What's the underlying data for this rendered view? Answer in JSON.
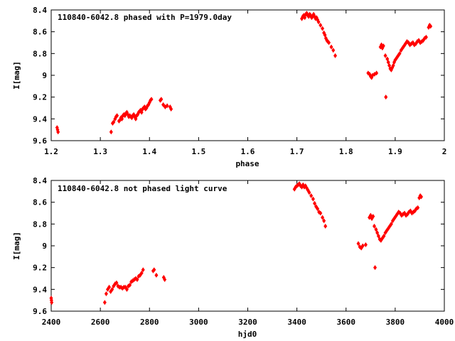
{
  "chart_data": [
    {
      "type": "scatter",
      "title": "110840-6042.8 phased with P=1979.0day",
      "xlabel": "phase",
      "ylabel": "I[mag]",
      "xlim": [
        1.2,
        2.0
      ],
      "ylim": [
        9.6,
        8.4
      ],
      "y_inverted": true,
      "grid": false,
      "xticks": [
        "1.2",
        "1.3",
        "1.4",
        "1.5",
        "1.6",
        "1.7",
        "1.8",
        "1.9",
        "2"
      ],
      "yticks": [
        "8.4",
        "8.6",
        "8.8",
        "9",
        "9.2",
        "9.4",
        "9.6"
      ],
      "series": [
        {
          "color": "#ff0000",
          "marker": "diamond",
          "points": [
            [
              1.212,
              9.48
            ],
            [
              1.213,
              9.5
            ],
            [
              1.214,
              9.52
            ],
            [
              1.322,
              9.52
            ],
            [
              1.325,
              9.44
            ],
            [
              1.327,
              9.43
            ],
            [
              1.33,
              9.4
            ],
            [
              1.332,
              9.38
            ],
            [
              1.334,
              9.37
            ],
            [
              1.338,
              9.42
            ],
            [
              1.34,
              9.41
            ],
            [
              1.342,
              9.39
            ],
            [
              1.344,
              9.4
            ],
            [
              1.346,
              9.37
            ],
            [
              1.348,
              9.36
            ],
            [
              1.35,
              9.37
            ],
            [
              1.352,
              9.35
            ],
            [
              1.354,
              9.34
            ],
            [
              1.356,
              9.36
            ],
            [
              1.358,
              9.38
            ],
            [
              1.36,
              9.37
            ],
            [
              1.362,
              9.38
            ],
            [
              1.364,
              9.39
            ],
            [
              1.366,
              9.37
            ],
            [
              1.368,
              9.36
            ],
            [
              1.37,
              9.38
            ],
            [
              1.372,
              9.4
            ],
            [
              1.374,
              9.37
            ],
            [
              1.376,
              9.36
            ],
            [
              1.378,
              9.34
            ],
            [
              1.38,
              9.33
            ],
            [
              1.382,
              9.32
            ],
            [
              1.384,
              9.34
            ],
            [
              1.386,
              9.31
            ],
            [
              1.388,
              9.3
            ],
            [
              1.39,
              9.29
            ],
            [
              1.392,
              9.31
            ],
            [
              1.394,
              9.3
            ],
            [
              1.396,
              9.28
            ],
            [
              1.398,
              9.27
            ],
            [
              1.4,
              9.25
            ],
            [
              1.402,
              9.23
            ],
            [
              1.404,
              9.22
            ],
            [
              1.422,
              9.23
            ],
            [
              1.424,
              9.22
            ],
            [
              1.428,
              9.27
            ],
            [
              1.432,
              9.29
            ],
            [
              1.436,
              9.28
            ],
            [
              1.442,
              9.29
            ],
            [
              1.444,
              9.31
            ],
            [
              1.71,
              8.48
            ],
            [
              1.712,
              8.46
            ],
            [
              1.714,
              8.45
            ],
            [
              1.716,
              8.47
            ],
            [
              1.718,
              8.44
            ],
            [
              1.72,
              8.43
            ],
            [
              1.722,
              8.45
            ],
            [
              1.724,
              8.46
            ],
            [
              1.726,
              8.44
            ],
            [
              1.728,
              8.45
            ],
            [
              1.73,
              8.47
            ],
            [
              1.732,
              8.46
            ],
            [
              1.734,
              8.44
            ],
            [
              1.736,
              8.46
            ],
            [
              1.738,
              8.48
            ],
            [
              1.74,
              8.47
            ],
            [
              1.742,
              8.49
            ],
            [
              1.744,
              8.51
            ],
            [
              1.748,
              8.54
            ],
            [
              1.752,
              8.57
            ],
            [
              1.755,
              8.61
            ],
            [
              1.757,
              8.63
            ],
            [
              1.759,
              8.66
            ],
            [
              1.761,
              8.68
            ],
            [
              1.763,
              8.69
            ],
            [
              1.765,
              8.7
            ],
            [
              1.77,
              8.74
            ],
            [
              1.774,
              8.77
            ],
            [
              1.778,
              8.82
            ],
            [
              1.845,
              8.98
            ],
            [
              1.848,
              8.99
            ],
            [
              1.85,
              9.01
            ],
            [
              1.852,
              9.02
            ],
            [
              1.854,
              9.0
            ],
            [
              1.858,
              8.99
            ],
            [
              1.862,
              8.98
            ],
            [
              1.87,
              8.74
            ],
            [
              1.872,
              8.72
            ],
            [
              1.874,
              8.75
            ],
            [
              1.876,
              8.73
            ],
            [
              1.88,
              8.82
            ],
            [
              1.881,
              9.2
            ],
            [
              1.884,
              8.85
            ],
            [
              1.886,
              8.88
            ],
            [
              1.888,
              8.91
            ],
            [
              1.89,
              8.94
            ],
            [
              1.892,
              8.95
            ],
            [
              1.894,
              8.93
            ],
            [
              1.896,
              8.91
            ],
            [
              1.898,
              8.88
            ],
            [
              1.9,
              8.86
            ],
            [
              1.903,
              8.84
            ],
            [
              1.906,
              8.82
            ],
            [
              1.909,
              8.8
            ],
            [
              1.912,
              8.77
            ],
            [
              1.915,
              8.75
            ],
            [
              1.918,
              8.73
            ],
            [
              1.921,
              8.71
            ],
            [
              1.924,
              8.69
            ],
            [
              1.927,
              8.7
            ],
            [
              1.93,
              8.72
            ],
            [
              1.933,
              8.71
            ],
            [
              1.936,
              8.7
            ],
            [
              1.939,
              8.72
            ],
            [
              1.942,
              8.71
            ],
            [
              1.945,
              8.69
            ],
            [
              1.948,
              8.68
            ],
            [
              1.951,
              8.7
            ],
            [
              1.954,
              8.69
            ],
            [
              1.957,
              8.68
            ],
            [
              1.96,
              8.66
            ],
            [
              1.963,
              8.65
            ],
            [
              1.968,
              8.56
            ],
            [
              1.97,
              8.54
            ],
            [
              1.972,
              8.55
            ]
          ]
        }
      ]
    },
    {
      "type": "scatter",
      "title": "110840-6042.8 not phased light curve",
      "xlabel": "hjd0",
      "ylabel": "I[mag]",
      "xlim": [
        2400,
        4000
      ],
      "ylim": [
        9.6,
        8.4
      ],
      "y_inverted": true,
      "grid": false,
      "xticks": [
        "2400",
        "2600",
        "2800",
        "3000",
        "3200",
        "3400",
        "3600",
        "3800",
        "4000"
      ],
      "yticks": [
        "8.4",
        "8.6",
        "8.8",
        "9",
        "9.2",
        "9.4",
        "9.6"
      ],
      "series": [
        {
          "color": "#ff0000",
          "marker": "diamond",
          "points": [
            [
              2400,
              9.48
            ],
            [
              2401,
              9.5
            ],
            [
              2402,
              9.52
            ],
            [
              2618,
              9.52
            ],
            [
              2624,
              9.44
            ],
            [
              2630,
              9.4
            ],
            [
              2636,
              9.38
            ],
            [
              2642,
              9.42
            ],
            [
              2648,
              9.4
            ],
            [
              2654,
              9.37
            ],
            [
              2660,
              9.35
            ],
            [
              2666,
              9.34
            ],
            [
              2672,
              9.37
            ],
            [
              2678,
              9.38
            ],
            [
              2684,
              9.38
            ],
            [
              2690,
              9.39
            ],
            [
              2696,
              9.38
            ],
            [
              2702,
              9.38
            ],
            [
              2708,
              9.4
            ],
            [
              2714,
              9.37
            ],
            [
              2720,
              9.36
            ],
            [
              2726,
              9.33
            ],
            [
              2732,
              9.32
            ],
            [
              2738,
              9.31
            ],
            [
              2744,
              9.3
            ],
            [
              2750,
              9.31
            ],
            [
              2756,
              9.28
            ],
            [
              2762,
              9.27
            ],
            [
              2768,
              9.25
            ],
            [
              2774,
              9.22
            ],
            [
              2815,
              9.23
            ],
            [
              2819,
              9.22
            ],
            [
              2828,
              9.27
            ],
            [
              2858,
              9.29
            ],
            [
              2862,
              9.31
            ],
            [
              3390,
              8.48
            ],
            [
              3395,
              8.46
            ],
            [
              3400,
              8.45
            ],
            [
              3405,
              8.44
            ],
            [
              3410,
              8.43
            ],
            [
              3415,
              8.45
            ],
            [
              3420,
              8.46
            ],
            [
              3425,
              8.44
            ],
            [
              3430,
              8.46
            ],
            [
              3435,
              8.45
            ],
            [
              3440,
              8.47
            ],
            [
              3445,
              8.49
            ],
            [
              3450,
              8.51
            ],
            [
              3458,
              8.54
            ],
            [
              3466,
              8.57
            ],
            [
              3472,
              8.61
            ],
            [
              3478,
              8.64
            ],
            [
              3484,
              8.66
            ],
            [
              3490,
              8.69
            ],
            [
              3496,
              8.7
            ],
            [
              3504,
              8.74
            ],
            [
              3510,
              8.77
            ],
            [
              3516,
              8.82
            ],
            [
              3650,
              8.98
            ],
            [
              3656,
              9.01
            ],
            [
              3662,
              9.02
            ],
            [
              3668,
              9.0
            ],
            [
              3680,
              8.99
            ],
            [
              3695,
              8.74
            ],
            [
              3700,
              8.72
            ],
            [
              3705,
              8.75
            ],
            [
              3710,
              8.73
            ],
            [
              3715,
              8.82
            ],
            [
              3718,
              9.2
            ],
            [
              3722,
              8.85
            ],
            [
              3727,
              8.88
            ],
            [
              3732,
              8.91
            ],
            [
              3737,
              8.94
            ],
            [
              3742,
              8.95
            ],
            [
              3748,
              8.93
            ],
            [
              3754,
              8.91
            ],
            [
              3760,
              8.88
            ],
            [
              3766,
              8.86
            ],
            [
              3772,
              8.84
            ],
            [
              3778,
              8.82
            ],
            [
              3784,
              8.8
            ],
            [
              3790,
              8.77
            ],
            [
              3796,
              8.75
            ],
            [
              3802,
              8.73
            ],
            [
              3808,
              8.71
            ],
            [
              3814,
              8.69
            ],
            [
              3820,
              8.7
            ],
            [
              3826,
              8.72
            ],
            [
              3832,
              8.71
            ],
            [
              3838,
              8.7
            ],
            [
              3844,
              8.72
            ],
            [
              3850,
              8.71
            ],
            [
              3856,
              8.69
            ],
            [
              3862,
              8.68
            ],
            [
              3868,
              8.7
            ],
            [
              3874,
              8.69
            ],
            [
              3880,
              8.68
            ],
            [
              3886,
              8.66
            ],
            [
              3892,
              8.65
            ],
            [
              3898,
              8.56
            ],
            [
              3902,
              8.54
            ],
            [
              3906,
              8.55
            ]
          ]
        }
      ]
    }
  ]
}
